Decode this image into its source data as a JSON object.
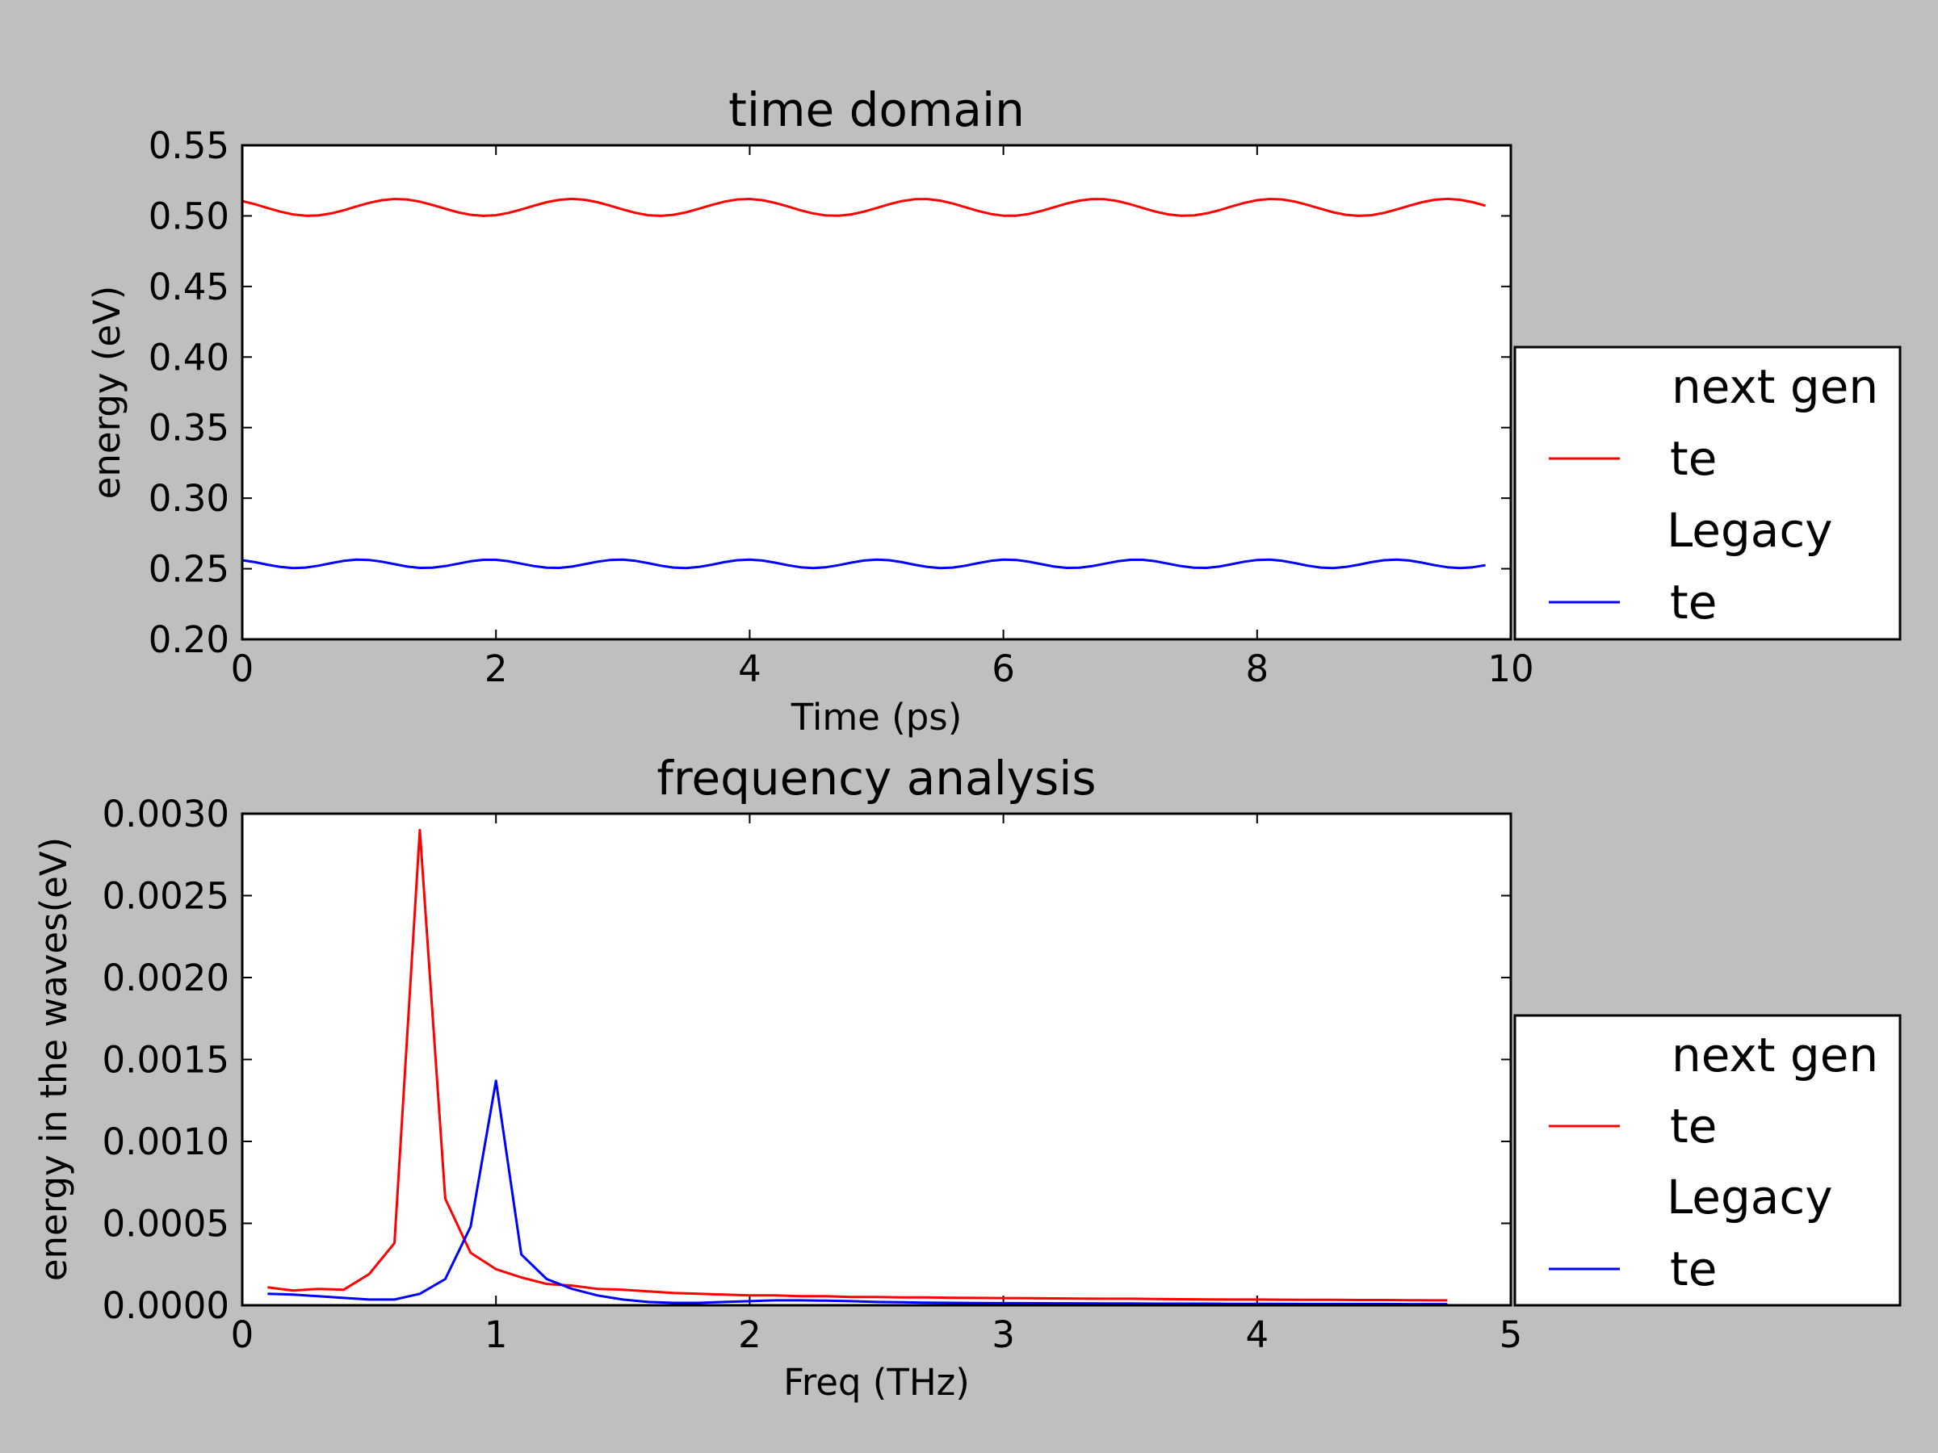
{
  "colors": {
    "figure_bg": "#bfbfbf",
    "axes_bg": "#ffffff",
    "series_red": "#ff0000",
    "series_blue": "#0000ff"
  },
  "chart_data": [
    {
      "type": "line",
      "title": "time domain",
      "xlabel": "Time (ps)",
      "ylabel": "energy (eV)",
      "xlim": [
        0,
        10
      ],
      "ylim": [
        0.2,
        0.55
      ],
      "x_ticks": [
        "0",
        "2",
        "4",
        "6",
        "8",
        "10"
      ],
      "y_ticks": [
        "0.20",
        "0.25",
        "0.30",
        "0.35",
        "0.40",
        "0.45",
        "0.50",
        "0.55"
      ],
      "grid": false,
      "legend_position": "outside right, lower",
      "legend": [
        {
          "label": "next gen",
          "line": false
        },
        {
          "label": "te",
          "line": true,
          "color": "#ff0000"
        },
        {
          "label": "Legacy",
          "line": false
        },
        {
          "label": "te",
          "line": true,
          "color": "#0000ff"
        }
      ],
      "series": [
        {
          "name": "te",
          "group": "next gen",
          "color": "#ff0000",
          "x_range": [
            0,
            9.8
          ],
          "mean": 0.506,
          "amplitude": 0.006,
          "period": 1.38,
          "peak_at": 1.22,
          "points": 99
        },
        {
          "name": "te",
          "group": "Legacy",
          "color": "#0000ff",
          "x_range": [
            0,
            9.8
          ],
          "mean": 0.2535,
          "amplitude": 0.003,
          "period": 1.02,
          "peak_at": 0.93,
          "points": 99
        }
      ]
    },
    {
      "type": "line",
      "title": "frequency analysis",
      "xlabel": "Freq (THz)",
      "ylabel": "energy in the waves(eV)",
      "xlim": [
        0,
        5
      ],
      "ylim": [
        0,
        0.003
      ],
      "x_ticks": [
        "0",
        "1",
        "2",
        "3",
        "4",
        "5"
      ],
      "y_ticks": [
        "0.0000",
        "0.0005",
        "0.0010",
        "0.0015",
        "0.0020",
        "0.0025",
        "0.0030"
      ],
      "grid": false,
      "legend_position": "outside right, lower",
      "legend": [
        {
          "label": "next gen",
          "line": false
        },
        {
          "label": "te",
          "line": true,
          "color": "#ff0000"
        },
        {
          "label": "Legacy",
          "line": false
        },
        {
          "label": "te",
          "line": true,
          "color": "#0000ff"
        }
      ],
      "series": [
        {
          "name": "te",
          "group": "next gen",
          "color": "#ff0000",
          "x": [
            0.1,
            0.2,
            0.3,
            0.4,
            0.5,
            0.6,
            0.7,
            0.8,
            0.9,
            1.0,
            1.1,
            1.2,
            1.3,
            1.4,
            1.5,
            1.6,
            1.7,
            1.8,
            1.9,
            2.0,
            2.1,
            2.2,
            2.3,
            2.4,
            2.5,
            2.6,
            2.7,
            2.8,
            2.9,
            3.0,
            3.1,
            3.2,
            3.3,
            3.4,
            3.5,
            3.6,
            3.7,
            3.8,
            3.9,
            4.0,
            4.1,
            4.2,
            4.3,
            4.4,
            4.5,
            4.6,
            4.75
          ],
          "y": [
            0.00011,
            9e-05,
            0.0001,
            9.5e-05,
            0.00019,
            0.00038,
            0.0029,
            0.00065,
            0.00032,
            0.00022,
            0.00017,
            0.00013,
            0.00012,
            0.0001,
            9.5e-05,
            8.5e-05,
            7.5e-05,
            7e-05,
            6.5e-05,
            6e-05,
            6e-05,
            5.5e-05,
            5.5e-05,
            5e-05,
            5e-05,
            4.8e-05,
            4.8e-05,
            4.6e-05,
            4.5e-05,
            4.4e-05,
            4.3e-05,
            4.2e-05,
            4.1e-05,
            4e-05,
            4e-05,
            3.8e-05,
            3.7e-05,
            3.6e-05,
            3.5e-05,
            3.5e-05,
            3.4e-05,
            3.3e-05,
            3.3e-05,
            3.2e-05,
            3.2e-05,
            3.1e-05,
            3e-05
          ]
        },
        {
          "name": "te",
          "group": "Legacy",
          "color": "#0000ff",
          "x": [
            0.1,
            0.2,
            0.3,
            0.4,
            0.5,
            0.6,
            0.7,
            0.8,
            0.9,
            1.0,
            1.1,
            1.2,
            1.3,
            1.4,
            1.5,
            1.6,
            1.7,
            1.8,
            1.9,
            2.0,
            2.1,
            2.2,
            2.3,
            2.4,
            2.5,
            2.6,
            2.7,
            2.8,
            2.9,
            3.0,
            3.1,
            3.2,
            3.3,
            3.4,
            3.5,
            3.6,
            3.7,
            3.8,
            3.9,
            4.0,
            4.1,
            4.2,
            4.3,
            4.4,
            4.5,
            4.6,
            4.75
          ],
          "y": [
            7e-05,
            6.5e-05,
            5.5e-05,
            4.5e-05,
            3.5e-05,
            3.5e-05,
            7e-05,
            0.00016,
            0.00048,
            0.00137,
            0.00031,
            0.00016,
            0.0001,
            6e-05,
            3.5e-05,
            2e-05,
            1.5e-05,
            1.5e-05,
            2e-05,
            2.5e-05,
            3e-05,
            3e-05,
            2.8e-05,
            2.5e-05,
            2e-05,
            1.8e-05,
            1.6e-05,
            1.5e-05,
            1.4e-05,
            1.3e-05,
            1.3e-05,
            1.2e-05,
            1.2e-05,
            1.1e-05,
            1.1e-05,
            1e-05,
            1e-05,
            1e-05,
            9e-06,
            9e-06,
            9e-06,
            8e-06,
            8e-06,
            8e-06,
            8e-06,
            7e-06,
            7e-06
          ]
        }
      ]
    }
  ]
}
